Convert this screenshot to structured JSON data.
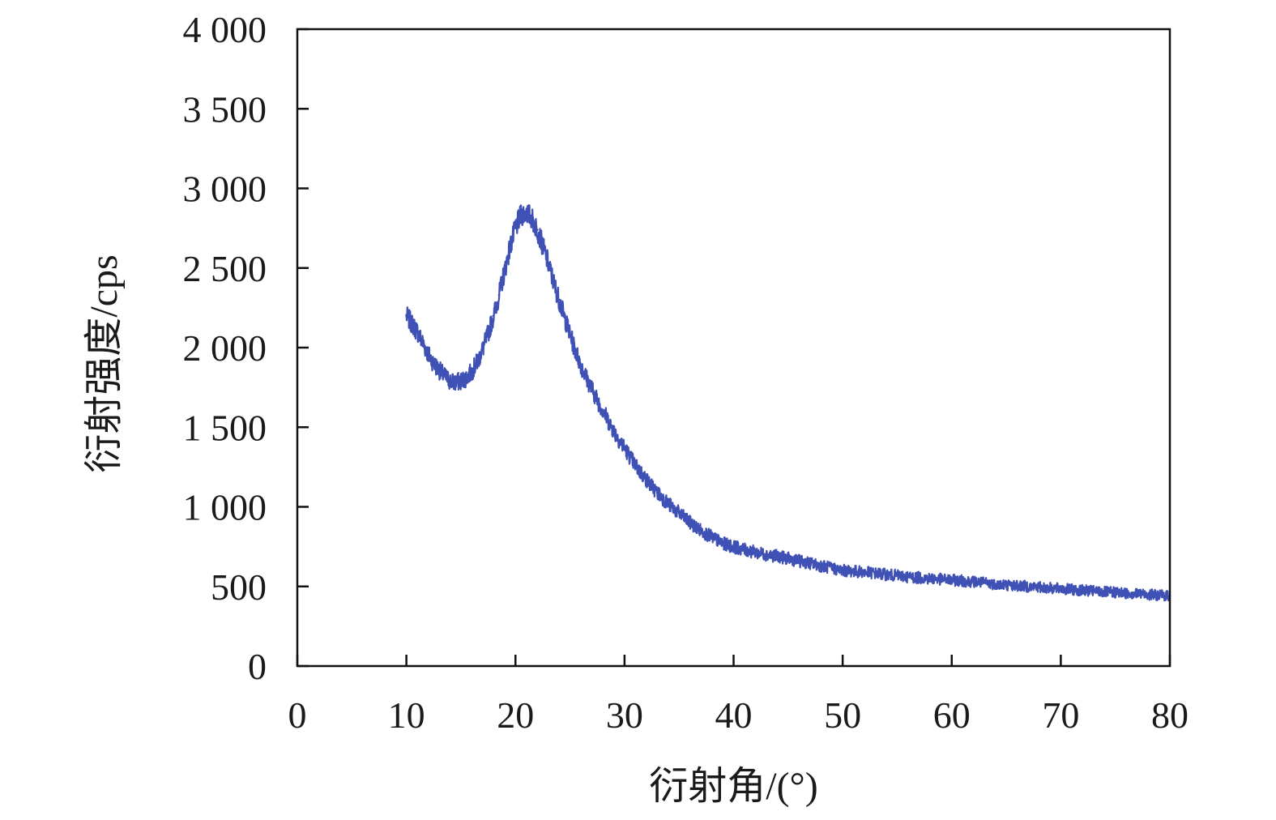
{
  "chart_data": {
    "type": "line",
    "title": "",
    "xlabel": "衍射角/(°)",
    "ylabel": "衍射强度/cps",
    "xlim": [
      0,
      80
    ],
    "ylim": [
      0,
      4000
    ],
    "x_ticks": [
      0,
      10,
      20,
      30,
      40,
      50,
      60,
      70,
      80
    ],
    "x_tick_labels": [
      "0",
      "10",
      "20",
      "30",
      "40",
      "50",
      "60",
      "70",
      "80"
    ],
    "y_ticks": [
      0,
      500,
      1000,
      1500,
      2000,
      2500,
      3000,
      3500,
      4000
    ],
    "y_tick_labels": [
      "0",
      "500",
      "1 000",
      "1 500",
      "2 000",
      "2 500",
      "3 000",
      "3 500",
      "4 000"
    ],
    "grid": false,
    "legend": "none",
    "series_color": "#3f51b5",
    "series": [
      {
        "x": [
          10,
          10.5,
          11,
          11.5,
          12,
          12.5,
          13,
          13.5,
          14,
          14.5,
          15,
          15.5,
          16,
          16.5,
          17,
          17.5,
          18,
          18.5,
          19,
          19.5,
          20,
          20.5,
          21,
          21.5,
          22,
          22.5,
          23,
          23.5,
          24,
          24.5,
          25,
          25.5,
          26,
          26.5,
          27,
          27.5,
          28,
          28.5,
          29,
          29.5,
          30,
          31,
          32,
          33,
          34,
          35,
          36,
          37,
          38,
          39,
          40,
          41,
          42,
          43,
          44,
          45,
          46,
          47,
          48,
          49,
          50,
          52,
          54,
          56,
          58,
          60,
          62,
          64,
          66,
          68,
          70,
          72,
          74,
          76,
          78,
          80
        ],
        "y": [
          2200,
          2150,
          2100,
          2030,
          1960,
          1900,
          1860,
          1820,
          1790,
          1780,
          1790,
          1810,
          1850,
          1910,
          1990,
          2090,
          2200,
          2330,
          2480,
          2630,
          2750,
          2830,
          2850,
          2810,
          2740,
          2640,
          2530,
          2410,
          2300,
          2190,
          2080,
          1980,
          1890,
          1810,
          1740,
          1670,
          1610,
          1540,
          1480,
          1420,
          1370,
          1260,
          1170,
          1090,
          1020,
          960,
          900,
          850,
          810,
          770,
          750,
          730,
          715,
          700,
          690,
          675,
          660,
          645,
          630,
          615,
          600,
          590,
          575,
          560,
          550,
          540,
          530,
          515,
          505,
          495,
          485,
          475,
          465,
          458,
          450,
          440
        ]
      }
    ]
  }
}
